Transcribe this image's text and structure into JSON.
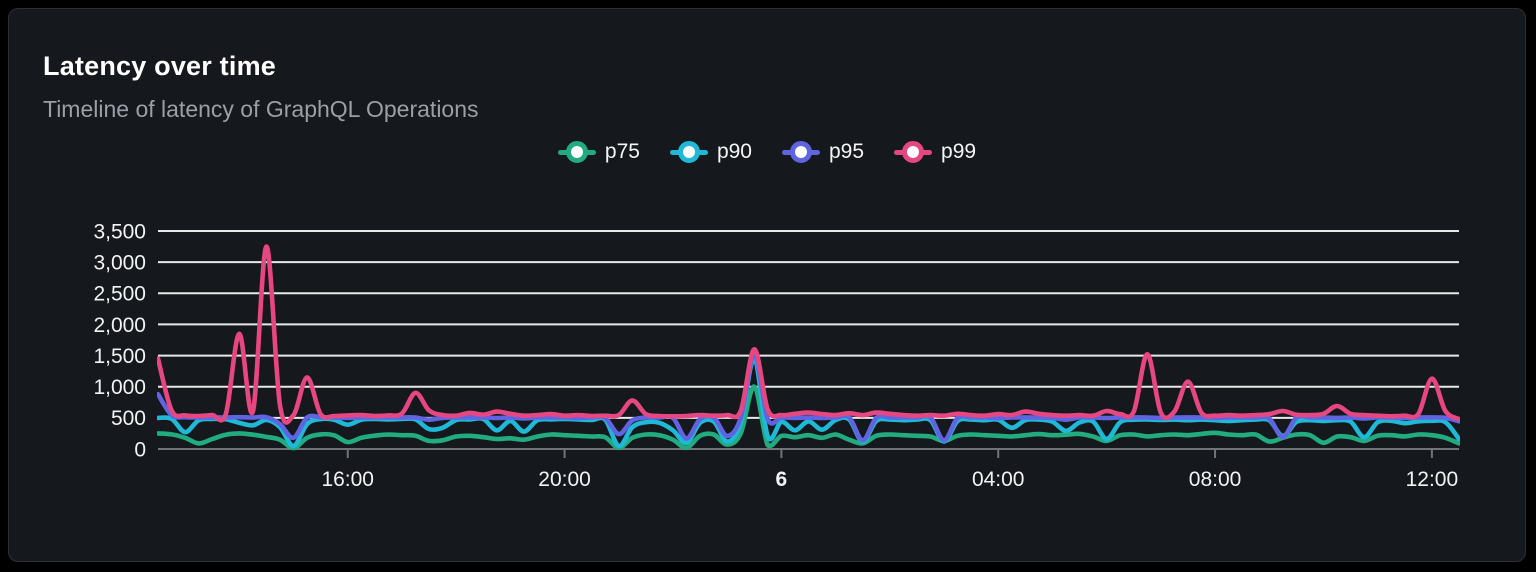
{
  "card": {
    "title": "Latency over time",
    "subtitle": "Timeline of latency of GraphQL Operations"
  },
  "colors": {
    "background": "#000000",
    "card_background": "#15181d",
    "card_border": "#2c2f34",
    "title_text": "#ffffff",
    "subtitle_text": "#9aa0a6",
    "axis_label_text": "#f2f3f5",
    "gridline": "#e7e8ea",
    "axis_line": "#71757a"
  },
  "chart_data": {
    "type": "line",
    "title": "Latency over time",
    "subtitle": "Timeline of latency of GraphQL Operations",
    "legend_position": "top-center",
    "grid": true,
    "y_axis": {
      "min": 0,
      "max": 3500,
      "tick_step": 500,
      "tick_labels": [
        "0",
        "500",
        "1,000",
        "1,500",
        "2,000",
        "2,500",
        "3,000",
        "3,500"
      ]
    },
    "x_axis": {
      "unit": "hours",
      "range_hours": 24,
      "point_interval_hours": 0.25,
      "ticks": [
        {
          "label": "16:00",
          "t": 3.5,
          "bold": false
        },
        {
          "label": "20:00",
          "t": 7.5,
          "bold": false
        },
        {
          "label": "6",
          "t": 11.5,
          "bold": true
        },
        {
          "label": "04:00",
          "t": 15.5,
          "bold": false
        },
        {
          "label": "08:00",
          "t": 19.5,
          "bold": false
        },
        {
          "label": "12:00",
          "t": 23.5,
          "bold": false
        }
      ]
    },
    "series": [
      {
        "name": "p75",
        "color": "#23ab80",
        "values": [
          250,
          235,
          180,
          90,
          160,
          230,
          250,
          230,
          195,
          150,
          15,
          180,
          235,
          220,
          110,
          180,
          215,
          232,
          222,
          212,
          130,
          140,
          200,
          212,
          190,
          160,
          172,
          150,
          200,
          232,
          222,
          212,
          200,
          190,
          20,
          180,
          232,
          222,
          150,
          20,
          212,
          232,
          70,
          250,
          1000,
          60,
          210,
          190,
          222,
          180,
          232,
          150,
          90,
          212,
          232,
          222,
          212,
          200,
          130,
          212,
          232,
          222,
          212,
          200,
          222,
          240,
          222,
          230,
          242,
          200,
          130,
          222,
          232,
          202,
          222,
          232,
          222,
          242,
          260,
          232,
          222,
          232,
          120,
          180,
          232,
          222,
          100,
          200,
          190,
          130,
          212,
          222,
          202,
          232,
          222,
          180,
          90
        ]
      },
      {
        "name": "p90",
        "color": "#1fb8d6",
        "values": [
          500,
          485,
          270,
          460,
          482,
          478,
          420,
          380,
          465,
          350,
          50,
          400,
          480,
          470,
          390,
          470,
          482,
          475,
          482,
          475,
          320,
          340,
          465,
          475,
          482,
          300,
          450,
          280,
          462,
          475,
          482,
          475,
          465,
          470,
          50,
          350,
          430,
          420,
          300,
          100,
          420,
          445,
          120,
          420,
          1450,
          200,
          435,
          300,
          445,
          310,
          465,
          475,
          120,
          450,
          472,
          462,
          472,
          462,
          120,
          450,
          472,
          462,
          470,
          340,
          462,
          472,
          440,
          290,
          425,
          440,
          160,
          430,
          470,
          475,
          465,
          472,
          462,
          472,
          462,
          450,
          462,
          472,
          460,
          210,
          435,
          462,
          450,
          462,
          440,
          190,
          430,
          452,
          415,
          445,
          452,
          430,
          160
        ]
      },
      {
        "name": "p95",
        "color": "#6164e0",
        "values": [
          880,
          545,
          510,
          505,
          508,
          505,
          510,
          505,
          510,
          400,
          180,
          505,
          510,
          505,
          500,
          505,
          508,
          505,
          508,
          505,
          470,
          500,
          505,
          508,
          505,
          498,
          505,
          490,
          505,
          508,
          505,
          500,
          505,
          500,
          240,
          460,
          505,
          505,
          500,
          170,
          480,
          505,
          210,
          500,
          1520,
          480,
          505,
          500,
          505,
          498,
          505,
          508,
          140,
          500,
          505,
          505,
          508,
          505,
          140,
          500,
          508,
          505,
          500,
          505,
          508,
          505,
          500,
          470,
          505,
          505,
          498,
          505,
          508,
          505,
          500,
          505,
          508,
          505,
          500,
          505,
          508,
          505,
          490,
          190,
          505,
          508,
          505,
          500,
          505,
          490,
          508,
          505,
          500,
          505,
          508,
          500,
          445
        ]
      },
      {
        "name": "p99",
        "color": "#e64781",
        "values": [
          1450,
          620,
          540,
          530,
          545,
          560,
          1850,
          600,
          3250,
          700,
          545,
          1150,
          560,
          530,
          540,
          545,
          530,
          540,
          570,
          900,
          620,
          545,
          535,
          580,
          550,
          600,
          565,
          535,
          545,
          560,
          535,
          545,
          530,
          535,
          545,
          780,
          560,
          530,
          525,
          530,
          545,
          535,
          545,
          610,
          1600,
          630,
          545,
          565,
          585,
          560,
          545,
          575,
          545,
          585,
          565,
          545,
          535,
          545,
          535,
          565,
          545,
          535,
          560,
          545,
          600,
          565,
          545,
          535,
          545,
          535,
          610,
          560,
          600,
          1520,
          580,
          600,
          1080,
          580,
          535,
          545,
          535,
          545,
          560,
          610,
          550,
          545,
          565,
          690,
          565,
          545,
          535,
          525,
          535,
          560,
          1130,
          610,
          480
        ]
      }
    ]
  }
}
